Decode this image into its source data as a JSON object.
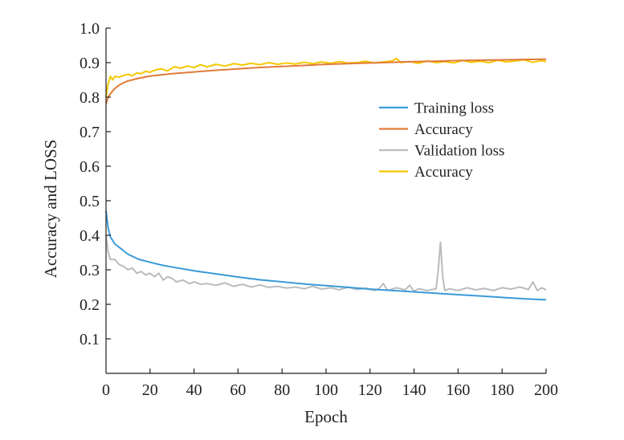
{
  "chart_data": {
    "type": "line",
    "title": "",
    "xlabel": "Epoch",
    "ylabel": "Accuracy and LOSS",
    "xlim": [
      0,
      200
    ],
    "ylim": [
      0,
      1.0
    ],
    "xticks": [
      "0",
      "20",
      "40",
      "60",
      "80",
      "100",
      "120",
      "140",
      "160",
      "180",
      "200"
    ],
    "yticks": [
      "0.1",
      "0.2",
      "0.3",
      "0.4",
      "0.5",
      "0.6",
      "0.7",
      "0.8",
      "0.9",
      "1.0"
    ],
    "grid": false,
    "legend_position": "center-right",
    "series": [
      {
        "name": "Training loss",
        "color": "#3a9ad9",
        "x": [
          0,
          1,
          2,
          4,
          6,
          8,
          10,
          15,
          20,
          25,
          30,
          40,
          50,
          60,
          70,
          80,
          90,
          100,
          110,
          120,
          130,
          140,
          150,
          160,
          170,
          180,
          190,
          200
        ],
        "y": [
          0.47,
          0.42,
          0.395,
          0.375,
          0.365,
          0.355,
          0.345,
          0.33,
          0.322,
          0.314,
          0.308,
          0.297,
          0.288,
          0.279,
          0.271,
          0.265,
          0.259,
          0.254,
          0.249,
          0.244,
          0.24,
          0.236,
          0.232,
          0.228,
          0.224,
          0.22,
          0.216,
          0.213
        ]
      },
      {
        "name": "Accuracy",
        "color": "#e07b39",
        "x": [
          0,
          1,
          2,
          4,
          6,
          8,
          10,
          15,
          20,
          30,
          40,
          50,
          60,
          70,
          80,
          90,
          100,
          110,
          120,
          130,
          140,
          150,
          160,
          170,
          180,
          190,
          200
        ],
        "y": [
          0.78,
          0.8,
          0.81,
          0.825,
          0.835,
          0.842,
          0.847,
          0.855,
          0.861,
          0.868,
          0.873,
          0.878,
          0.882,
          0.886,
          0.889,
          0.892,
          0.895,
          0.897,
          0.899,
          0.901,
          0.903,
          0.904,
          0.906,
          0.907,
          0.908,
          0.909,
          0.91
        ]
      },
      {
        "name": "Validation loss",
        "color": "#b9bcbf",
        "x": [
          0,
          1,
          2,
          4,
          6,
          8,
          10,
          12,
          14,
          16,
          18,
          20,
          22,
          24,
          26,
          28,
          30,
          32,
          35,
          38,
          40,
          43,
          46,
          50,
          54,
          58,
          62,
          66,
          70,
          74,
          78,
          82,
          86,
          90,
          94,
          98,
          102,
          106,
          110,
          114,
          118,
          122,
          124,
          126,
          128,
          132,
          136,
          138,
          140,
          142,
          146,
          150,
          151,
          152,
          153,
          154,
          156,
          160,
          164,
          168,
          172,
          176,
          180,
          184,
          188,
          192,
          194,
          196,
          198,
          200
        ],
        "y": [
          0.4,
          0.35,
          0.33,
          0.33,
          0.315,
          0.31,
          0.3,
          0.305,
          0.29,
          0.295,
          0.285,
          0.29,
          0.28,
          0.29,
          0.27,
          0.28,
          0.275,
          0.265,
          0.27,
          0.26,
          0.265,
          0.258,
          0.26,
          0.255,
          0.262,
          0.252,
          0.258,
          0.25,
          0.256,
          0.249,
          0.252,
          0.247,
          0.25,
          0.245,
          0.252,
          0.244,
          0.248,
          0.242,
          0.25,
          0.243,
          0.247,
          0.24,
          0.245,
          0.26,
          0.24,
          0.248,
          0.242,
          0.255,
          0.238,
          0.245,
          0.24,
          0.245,
          0.3,
          0.38,
          0.28,
          0.24,
          0.245,
          0.24,
          0.248,
          0.242,
          0.246,
          0.24,
          0.248,
          0.244,
          0.25,
          0.243,
          0.265,
          0.24,
          0.248,
          0.242
        ]
      },
      {
        "name": "Accuracy",
        "color": "#f5c800",
        "x": [
          0,
          1,
          2,
          3,
          4,
          6,
          8,
          10,
          12,
          14,
          16,
          18,
          20,
          22,
          25,
          28,
          31,
          34,
          37,
          40,
          43,
          46,
          50,
          54,
          58,
          62,
          66,
          70,
          74,
          78,
          82,
          86,
          90,
          94,
          98,
          102,
          106,
          110,
          114,
          118,
          122,
          126,
          130,
          132,
          134,
          138,
          142,
          146,
          150,
          154,
          158,
          162,
          166,
          170,
          174,
          178,
          182,
          186,
          190,
          194,
          198,
          200
        ],
        "y": [
          0.8,
          0.84,
          0.86,
          0.85,
          0.86,
          0.858,
          0.863,
          0.866,
          0.862,
          0.87,
          0.868,
          0.875,
          0.872,
          0.878,
          0.882,
          0.876,
          0.888,
          0.884,
          0.89,
          0.886,
          0.894,
          0.888,
          0.895,
          0.89,
          0.897,
          0.893,
          0.898,
          0.894,
          0.9,
          0.895,
          0.899,
          0.896,
          0.901,
          0.897,
          0.902,
          0.898,
          0.903,
          0.899,
          0.9,
          0.904,
          0.899,
          0.902,
          0.905,
          0.912,
          0.9,
          0.903,
          0.898,
          0.905,
          0.9,
          0.903,
          0.899,
          0.906,
          0.901,
          0.904,
          0.9,
          0.907,
          0.902,
          0.905,
          0.908,
          0.901,
          0.906,
          0.903
        ]
      }
    ]
  }
}
